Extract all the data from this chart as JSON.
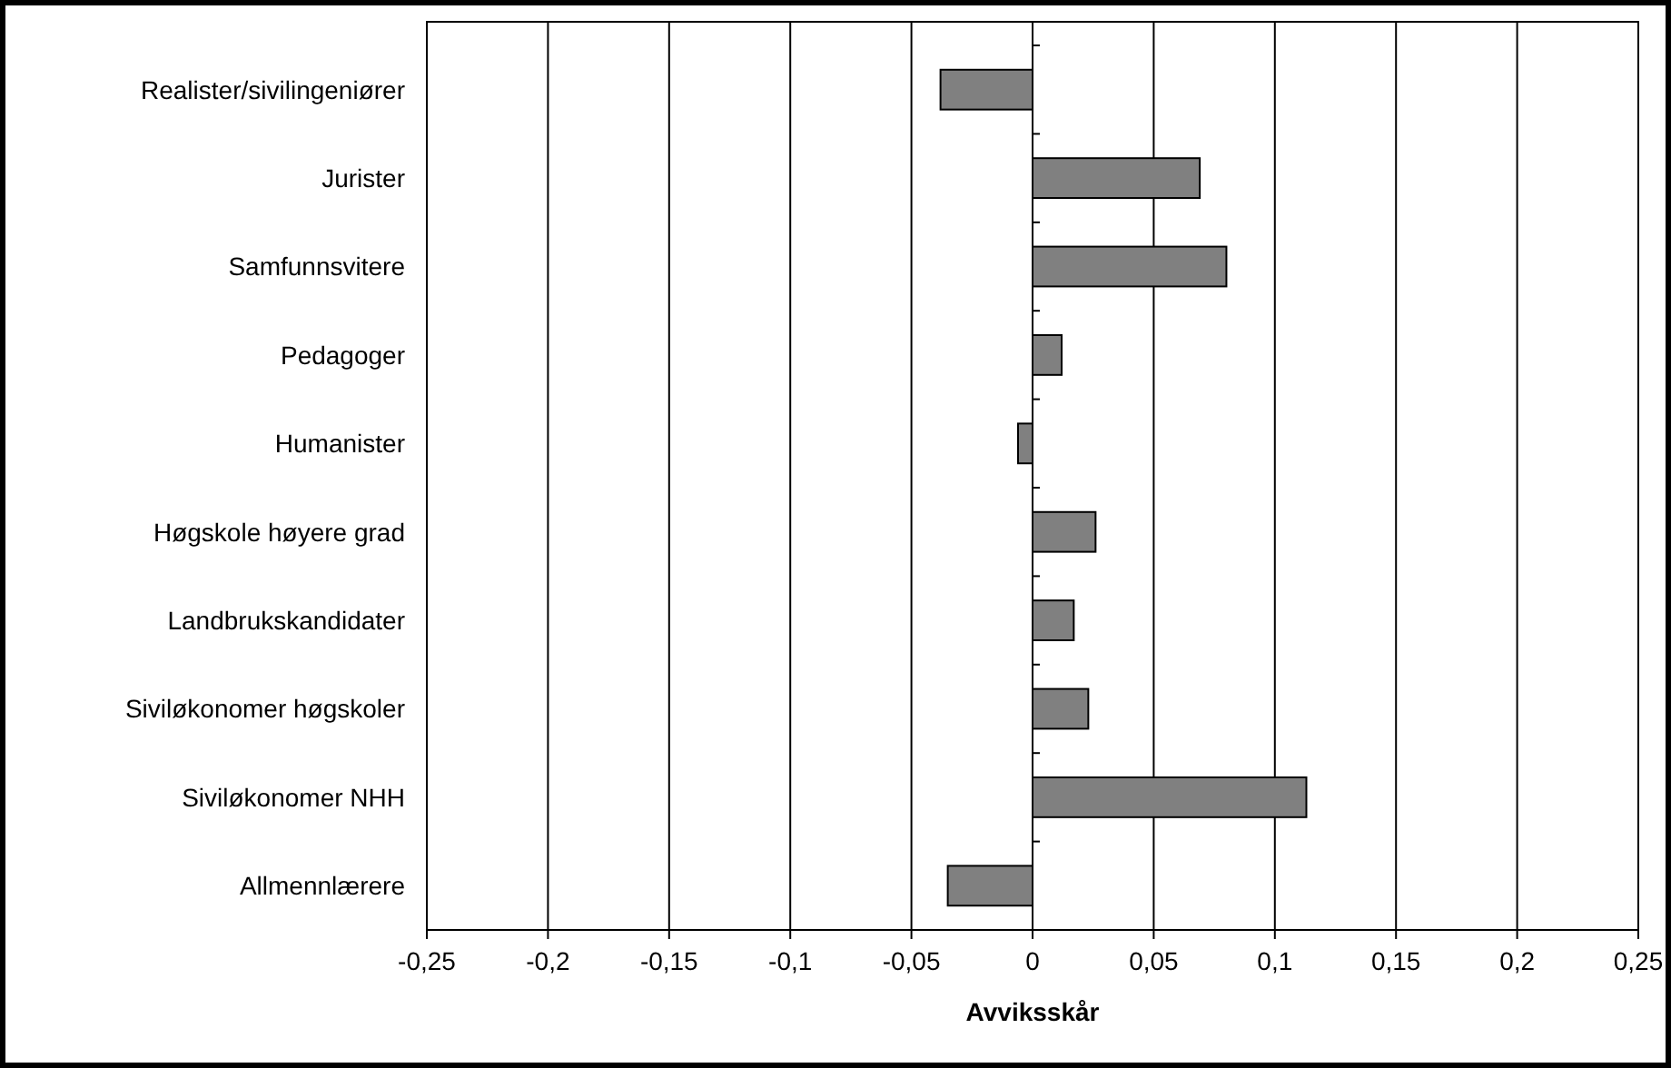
{
  "chart_data": {
    "type": "bar",
    "orientation": "horizontal",
    "xlabel": "Avviksskår",
    "categories": [
      "Realister/sivilingeniører",
      "Jurister",
      "Samfunnsvitere",
      "Pedagoger",
      "Humanister",
      "Høgskole høyere grad",
      "Landbrukskandidater",
      "Siviløkonomer høgskoler",
      "Siviløkonomer NHH",
      "Allmennlærere"
    ],
    "values": [
      -0.038,
      0.069,
      0.08,
      0.012,
      -0.006,
      0.026,
      0.017,
      0.023,
      0.113,
      -0.035
    ],
    "color": "#808080",
    "xlim": [
      -0.25,
      0.25
    ],
    "xticks": [
      {
        "value": -0.25,
        "label": "-0,25"
      },
      {
        "value": -0.2,
        "label": "-0,2"
      },
      {
        "value": -0.15,
        "label": "-0,15"
      },
      {
        "value": -0.1,
        "label": "-0,1"
      },
      {
        "value": -0.05,
        "label": "-0,05"
      },
      0,
      {
        "value": 0.05,
        "label": "0,05"
      },
      {
        "value": 0.1,
        "label": "0,1"
      },
      {
        "value": 0.15,
        "label": "0,15"
      },
      {
        "value": 0.2,
        "label": "0,2"
      },
      {
        "value": 0.25,
        "label": "0,25"
      }
    ],
    "grid": "x"
  }
}
